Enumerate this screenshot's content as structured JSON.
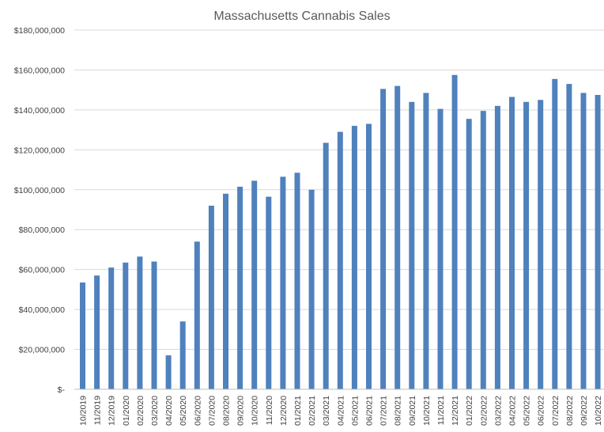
{
  "chart_data": {
    "type": "bar",
    "title": "Massachusetts Cannabis Sales",
    "xlabel": "",
    "ylabel": "",
    "ylim": [
      0,
      180000000
    ],
    "yticks": [
      {
        "value": 0,
        "label": "$-"
      },
      {
        "value": 20000000,
        "label": "$20,000,000"
      },
      {
        "value": 40000000,
        "label": "$40,000,000"
      },
      {
        "value": 60000000,
        "label": "$60,000,000"
      },
      {
        "value": 80000000,
        "label": "$80,000,000"
      },
      {
        "value": 100000000,
        "label": "$100,000,000"
      },
      {
        "value": 120000000,
        "label": "$120,000,000"
      },
      {
        "value": 140000000,
        "label": "$140,000,000"
      },
      {
        "value": 160000000,
        "label": "$160,000,000"
      },
      {
        "value": 180000000,
        "label": "$180,000,000"
      }
    ],
    "grid": true,
    "legend": "none",
    "bar_color": "#4f81bd",
    "categories": [
      "10/2019",
      "11/2019",
      "12/2019",
      "01/2020",
      "02/2020",
      "03/2020",
      "04/2020",
      "05/2020",
      "06/2020",
      "07/2020",
      "08/2020",
      "09/2020",
      "10/2020",
      "11/2020",
      "12/2020",
      "01/2021",
      "02/2021",
      "03/2021",
      "04/2021",
      "05/2021",
      "06/2021",
      "07/2021",
      "08/2021",
      "09/2021",
      "10/2021",
      "11/2021",
      "12/2021",
      "01/2022",
      "02/2022",
      "03/2022",
      "04/2022",
      "05/2022",
      "06/2022",
      "07/2022",
      "08/2022",
      "09/2022",
      "10/2022"
    ],
    "values": [
      53500000,
      57000000,
      61000000,
      63500000,
      66500000,
      64000000,
      17000000,
      34000000,
      74000000,
      92000000,
      98000000,
      101500000,
      104500000,
      96500000,
      106500000,
      108500000,
      100000000,
      123500000,
      129000000,
      132000000,
      133000000,
      150500000,
      152000000,
      144000000,
      148500000,
      140500000,
      157500000,
      135500000,
      139500000,
      142000000,
      146500000,
      144000000,
      145000000,
      155500000,
      153000000,
      148500000,
      147500000
    ]
  }
}
